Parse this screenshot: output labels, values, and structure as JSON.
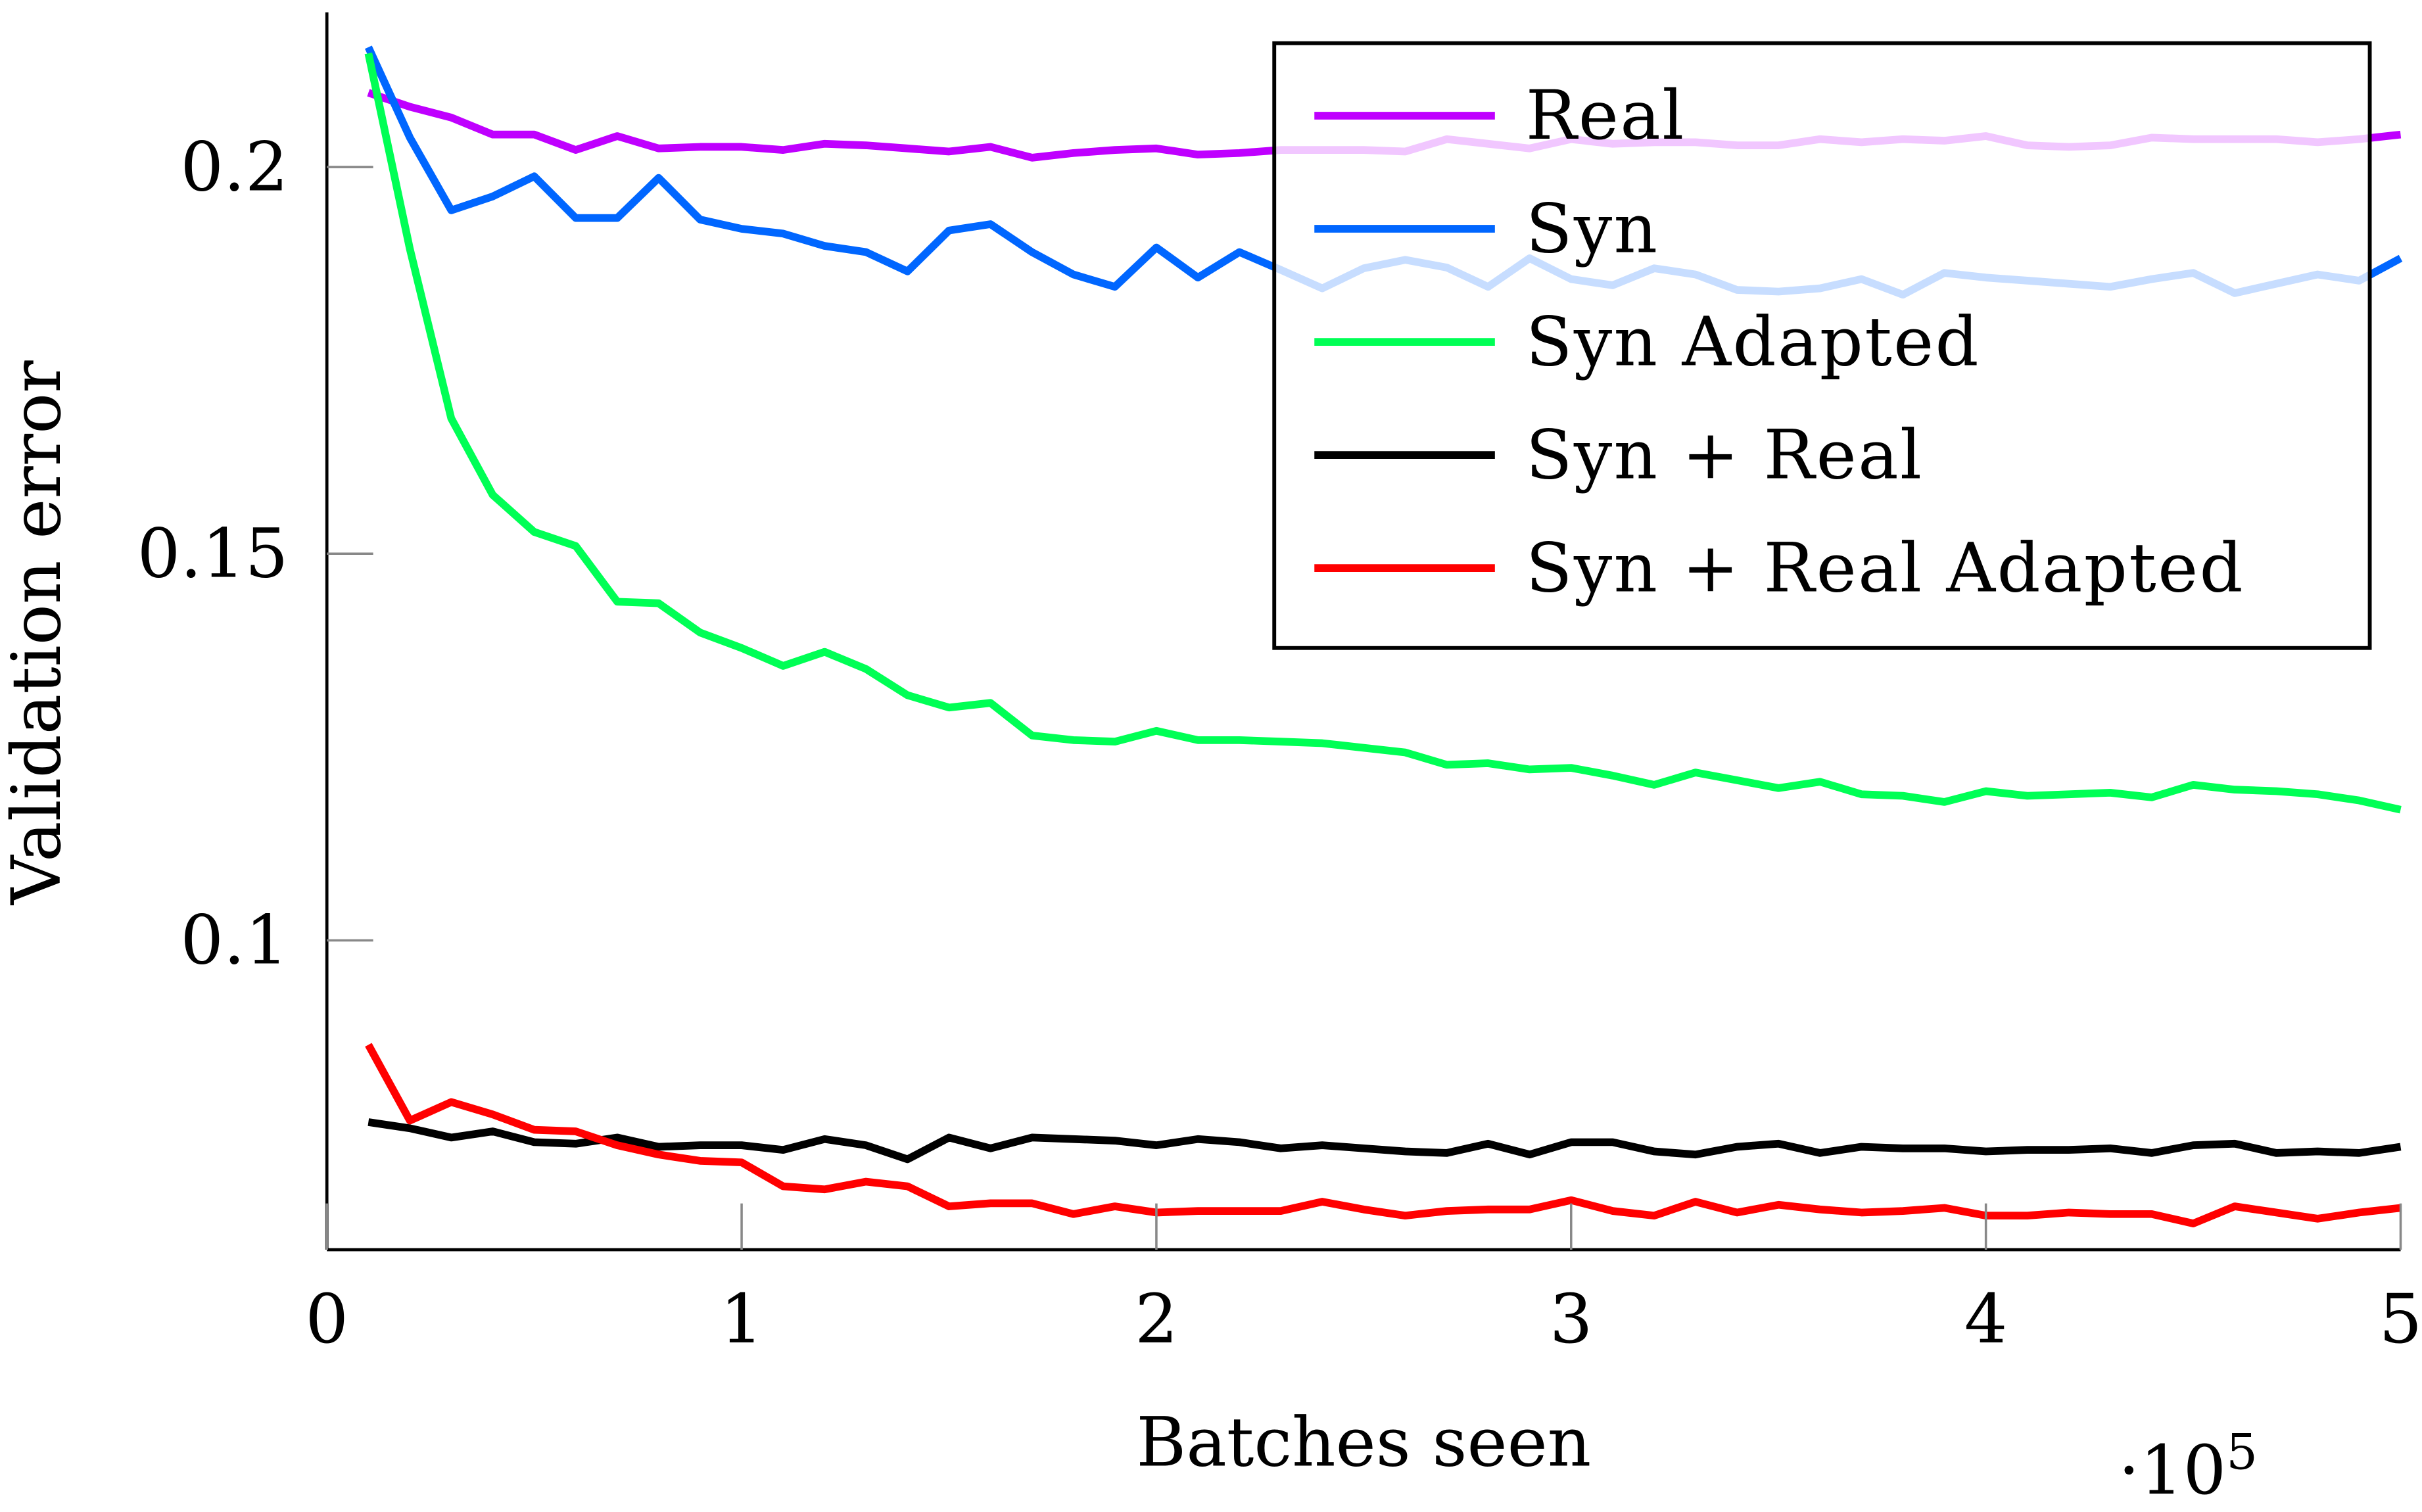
{
  "chart_data": {
    "type": "line",
    "title": "",
    "xlabel": "Batches seen",
    "ylabel": "Validation error",
    "x_multiplier_label": "·10",
    "x_multiplier_exp": "5",
    "xlim": [
      0,
      5
    ],
    "ylim": [
      0.06,
      0.22
    ],
    "xticks": [
      "0",
      "1",
      "2",
      "3",
      "4",
      "5"
    ],
    "yticks": [
      {
        "value": 0.1,
        "label": "0.1"
      },
      {
        "value": 0.15,
        "label": "0.15"
      },
      {
        "value": 0.2,
        "label": "0.2"
      }
    ],
    "grid": false,
    "legend_position": "top-right",
    "x": [
      0.1,
      0.2,
      0.3,
      0.4,
      0.5,
      0.6,
      0.7,
      0.8,
      0.9,
      1.0,
      1.1,
      1.2,
      1.3,
      1.4,
      1.5,
      1.6,
      1.7,
      1.8,
      1.9,
      2.0,
      2.1,
      2.2,
      2.3,
      2.4,
      2.5,
      2.6,
      2.7,
      2.8,
      2.9,
      3.0,
      3.1,
      3.2,
      3.3,
      3.4,
      3.5,
      3.6,
      3.7,
      3.8,
      3.9,
      4.0,
      4.1,
      4.2,
      4.3,
      4.4,
      4.5,
      4.6,
      4.7,
      4.8,
      4.9,
      5.0
    ],
    "series": [
      {
        "name": "Real",
        "color": "#bf00ff",
        "values": [
          0.2096,
          0.2078,
          0.2064,
          0.2042,
          0.2042,
          0.2022,
          0.204,
          0.2024,
          0.2026,
          0.2026,
          0.2022,
          0.203,
          0.2028,
          0.2024,
          0.202,
          0.2026,
          0.2012,
          0.2018,
          0.2022,
          0.2024,
          0.2016,
          0.2018,
          0.2022,
          0.2022,
          0.2022,
          0.202,
          0.2036,
          0.203,
          0.2024,
          0.2036,
          0.203,
          0.2032,
          0.2032,
          0.2028,
          0.2028,
          0.2036,
          0.2032,
          0.2036,
          0.2034,
          0.204,
          0.2028,
          0.2026,
          0.2028,
          0.2038,
          0.2036,
          0.2036,
          0.2036,
          0.2032,
          0.2036,
          0.2042
        ]
      },
      {
        "name": "Syn",
        "color": "#0066ff",
        "values": [
          0.2155,
          0.2038,
          0.1944,
          0.1962,
          0.1988,
          0.1934,
          0.1934,
          0.1986,
          0.1932,
          0.192,
          0.1914,
          0.1898,
          0.189,
          0.1865,
          0.1918,
          0.1926,
          0.189,
          0.1861,
          0.1845,
          0.1896,
          0.1857,
          0.189,
          0.1867,
          0.1843,
          0.1869,
          0.188,
          0.187,
          0.1845,
          0.1882,
          0.1855,
          0.1847,
          0.1869,
          0.1861,
          0.1841,
          0.1839,
          0.1843,
          0.1855,
          0.1835,
          0.1863,
          0.1857,
          0.1853,
          0.1849,
          0.1845,
          0.1855,
          0.1863,
          0.1837,
          0.1849,
          0.1861,
          0.1853,
          0.1882
        ]
      },
      {
        "name": "Syn Adapted",
        "color": "#00ff55",
        "values": [
          0.2147,
          0.1894,
          0.1675,
          0.1576,
          0.1528,
          0.151,
          0.1438,
          0.1436,
          0.1398,
          0.1378,
          0.1355,
          0.1373,
          0.1351,
          0.1317,
          0.1301,
          0.1307,
          0.1265,
          0.1259,
          0.1257,
          0.1271,
          0.1259,
          0.1259,
          0.1257,
          0.1255,
          0.1249,
          0.1243,
          0.1227,
          0.1229,
          0.1221,
          0.1223,
          0.1213,
          0.1201,
          0.1217,
          0.1207,
          0.1197,
          0.1205,
          0.1189,
          0.1187,
          0.1179,
          0.1193,
          0.1187,
          0.1189,
          0.1191,
          0.1185,
          0.1201,
          0.1195,
          0.1193,
          0.1189,
          0.1181,
          0.1169
        ]
      },
      {
        "name": "Syn + Real",
        "color": "#000000",
        "values": [
          0.0765,
          0.0757,
          0.0745,
          0.0753,
          0.0739,
          0.0737,
          0.0745,
          0.0733,
          0.0735,
          0.0735,
          0.0729,
          0.0743,
          0.0735,
          0.0717,
          0.0745,
          0.0731,
          0.0745,
          0.0743,
          0.0741,
          0.0735,
          0.0743,
          0.0739,
          0.0731,
          0.0735,
          0.0731,
          0.0727,
          0.0725,
          0.0737,
          0.0723,
          0.0739,
          0.0739,
          0.0727,
          0.0723,
          0.0733,
          0.0737,
          0.0725,
          0.0733,
          0.0731,
          0.0731,
          0.0727,
          0.0729,
          0.0729,
          0.0731,
          0.0725,
          0.0735,
          0.0737,
          0.0725,
          0.0727,
          0.0725,
          0.0733
        ]
      },
      {
        "name": "Syn + Real Adapted",
        "color": "#ff0000",
        "values": [
          0.0865,
          0.0767,
          0.0791,
          0.0775,
          0.0755,
          0.0753,
          0.0735,
          0.0723,
          0.0715,
          0.0713,
          0.0682,
          0.0678,
          0.0688,
          0.0682,
          0.0656,
          0.066,
          0.066,
          0.0646,
          0.0656,
          0.0648,
          0.065,
          0.065,
          0.065,
          0.0662,
          0.0652,
          0.0644,
          0.065,
          0.0652,
          0.0652,
          0.0664,
          0.065,
          0.0644,
          0.0662,
          0.0648,
          0.0658,
          0.0652,
          0.0648,
          0.065,
          0.0654,
          0.0644,
          0.0644,
          0.0648,
          0.0646,
          0.0646,
          0.0634,
          0.0656,
          0.0648,
          0.064,
          0.0648,
          0.0654
        ]
      }
    ]
  }
}
